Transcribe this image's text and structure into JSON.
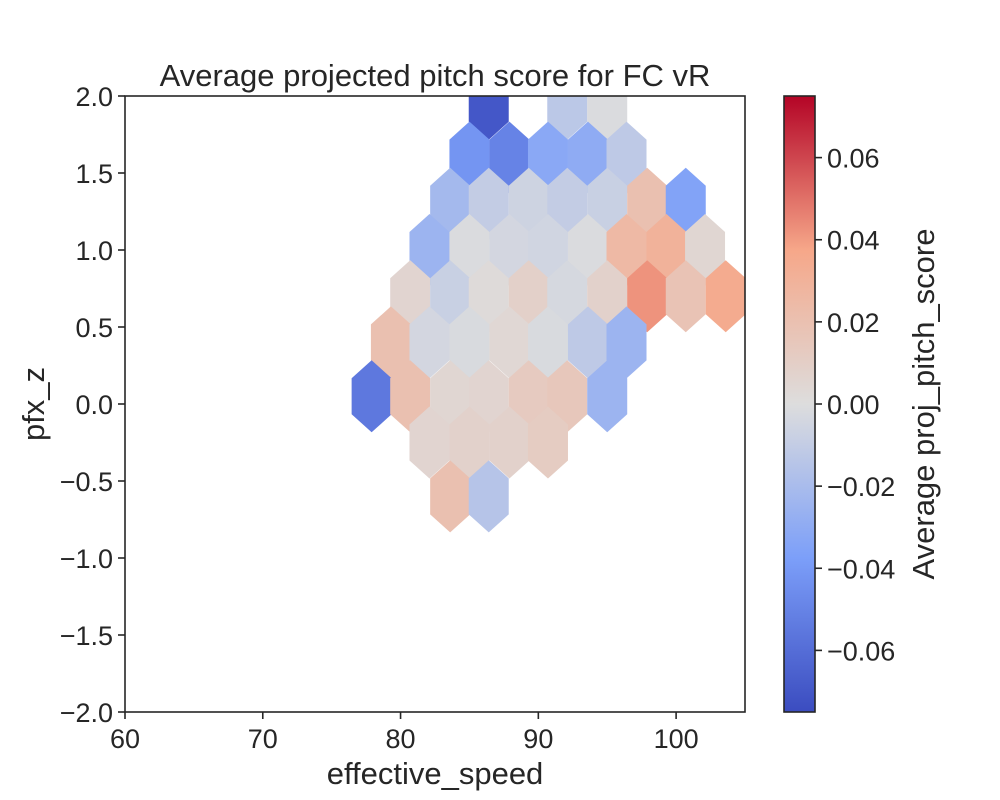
{
  "chart_data": {
    "type": "heatmap",
    "subtype": "hexbin",
    "title": "Average projected pitch score for FC vR",
    "xlabel": "effective_speed",
    "ylabel": "pfx_z",
    "xlim": [
      60,
      105
    ],
    "ylim": [
      -2.0,
      2.0
    ],
    "xticks": [
      60,
      70,
      80,
      90,
      100
    ],
    "xtick_labels": [
      "60",
      "70",
      "80",
      "90",
      "100"
    ],
    "yticks": [
      2.0,
      1.5,
      1.0,
      0.5,
      0.0,
      -0.5,
      -1.0,
      -1.5,
      -2.0
    ],
    "ytick_labels": [
      "2.0",
      "1.5",
      "1.0",
      "0.5",
      "0.0",
      "−0.5",
      "−1.0",
      "−1.5",
      "−2.0"
    ],
    "grid": false,
    "colormap": "coolwarm",
    "colorbar": {
      "label": "Average proj_pitch_score",
      "vmin": -0.075,
      "vmax": 0.075,
      "ticks": [
        0.06,
        0.04,
        0.02,
        0.0,
        -0.02,
        -0.04,
        -0.06
      ],
      "tick_labels": [
        "0.06",
        "0.04",
        "0.02",
        "0.00",
        "−0.02",
        "−0.04",
        "−0.06"
      ]
    },
    "hex_cells": [
      {
        "x": 86.4,
        "y": 1.95,
        "value": -0.07
      },
      {
        "x": 92.1,
        "y": 1.95,
        "value": -0.013
      },
      {
        "x": 95.0,
        "y": 1.95,
        "value": -0.001
      },
      {
        "x": 85.0,
        "y": 1.6,
        "value": -0.042
      },
      {
        "x": 87.9,
        "y": 1.6,
        "value": -0.05
      },
      {
        "x": 90.7,
        "y": 1.6,
        "value": -0.032
      },
      {
        "x": 93.6,
        "y": 1.6,
        "value": -0.03
      },
      {
        "x": 96.4,
        "y": 1.6,
        "value": -0.012
      },
      {
        "x": 83.6,
        "y": 1.3,
        "value": -0.022
      },
      {
        "x": 86.4,
        "y": 1.3,
        "value": -0.01
      },
      {
        "x": 89.3,
        "y": 1.3,
        "value": -0.006
      },
      {
        "x": 92.1,
        "y": 1.3,
        "value": -0.01
      },
      {
        "x": 95.0,
        "y": 1.3,
        "value": -0.008
      },
      {
        "x": 97.9,
        "y": 1.3,
        "value": 0.02
      },
      {
        "x": 100.7,
        "y": 1.3,
        "value": -0.035
      },
      {
        "x": 82.1,
        "y": 1.0,
        "value": -0.025
      },
      {
        "x": 85.0,
        "y": 1.0,
        "value": -0.001
      },
      {
        "x": 87.9,
        "y": 1.0,
        "value": -0.004
      },
      {
        "x": 90.7,
        "y": 1.0,
        "value": -0.005
      },
      {
        "x": 93.6,
        "y": 1.0,
        "value": -0.001
      },
      {
        "x": 96.4,
        "y": 1.0,
        "value": 0.025
      },
      {
        "x": 99.3,
        "y": 1.0,
        "value": 0.03
      },
      {
        "x": 102.1,
        "y": 1.0,
        "value": 0.005
      },
      {
        "x": 80.7,
        "y": 0.7,
        "value": 0.006
      },
      {
        "x": 83.6,
        "y": 0.7,
        "value": -0.008
      },
      {
        "x": 86.4,
        "y": 0.7,
        "value": 0.002
      },
      {
        "x": 89.3,
        "y": 0.7,
        "value": 0.009
      },
      {
        "x": 92.1,
        "y": 0.7,
        "value": -0.003
      },
      {
        "x": 95.0,
        "y": 0.7,
        "value": 0.008
      },
      {
        "x": 97.9,
        "y": 0.7,
        "value": 0.042
      },
      {
        "x": 100.7,
        "y": 0.7,
        "value": 0.018
      },
      {
        "x": 103.6,
        "y": 0.7,
        "value": 0.035
      },
      {
        "x": 79.3,
        "y": 0.4,
        "value": 0.02
      },
      {
        "x": 82.1,
        "y": 0.4,
        "value": -0.004
      },
      {
        "x": 85.0,
        "y": 0.4,
        "value": -0.002
      },
      {
        "x": 87.9,
        "y": 0.4,
        "value": 0.004
      },
      {
        "x": 90.7,
        "y": 0.4,
        "value": -0.002
      },
      {
        "x": 93.6,
        "y": 0.4,
        "value": -0.012
      },
      {
        "x": 96.4,
        "y": 0.4,
        "value": -0.025
      },
      {
        "x": 77.9,
        "y": 0.05,
        "value": -0.055
      },
      {
        "x": 80.7,
        "y": 0.05,
        "value": 0.02
      },
      {
        "x": 83.6,
        "y": 0.05,
        "value": 0.005
      },
      {
        "x": 86.4,
        "y": 0.05,
        "value": 0.006
      },
      {
        "x": 89.3,
        "y": 0.05,
        "value": 0.013
      },
      {
        "x": 92.1,
        "y": 0.05,
        "value": 0.015
      },
      {
        "x": 95.0,
        "y": 0.05,
        "value": -0.025
      },
      {
        "x": 82.1,
        "y": -0.25,
        "value": 0.006
      },
      {
        "x": 85.0,
        "y": -0.25,
        "value": 0.008
      },
      {
        "x": 87.9,
        "y": -0.25,
        "value": 0.008
      },
      {
        "x": 90.7,
        "y": -0.25,
        "value": 0.012
      },
      {
        "x": 83.6,
        "y": -0.6,
        "value": 0.02
      },
      {
        "x": 86.4,
        "y": -0.6,
        "value": -0.015
      }
    ]
  }
}
